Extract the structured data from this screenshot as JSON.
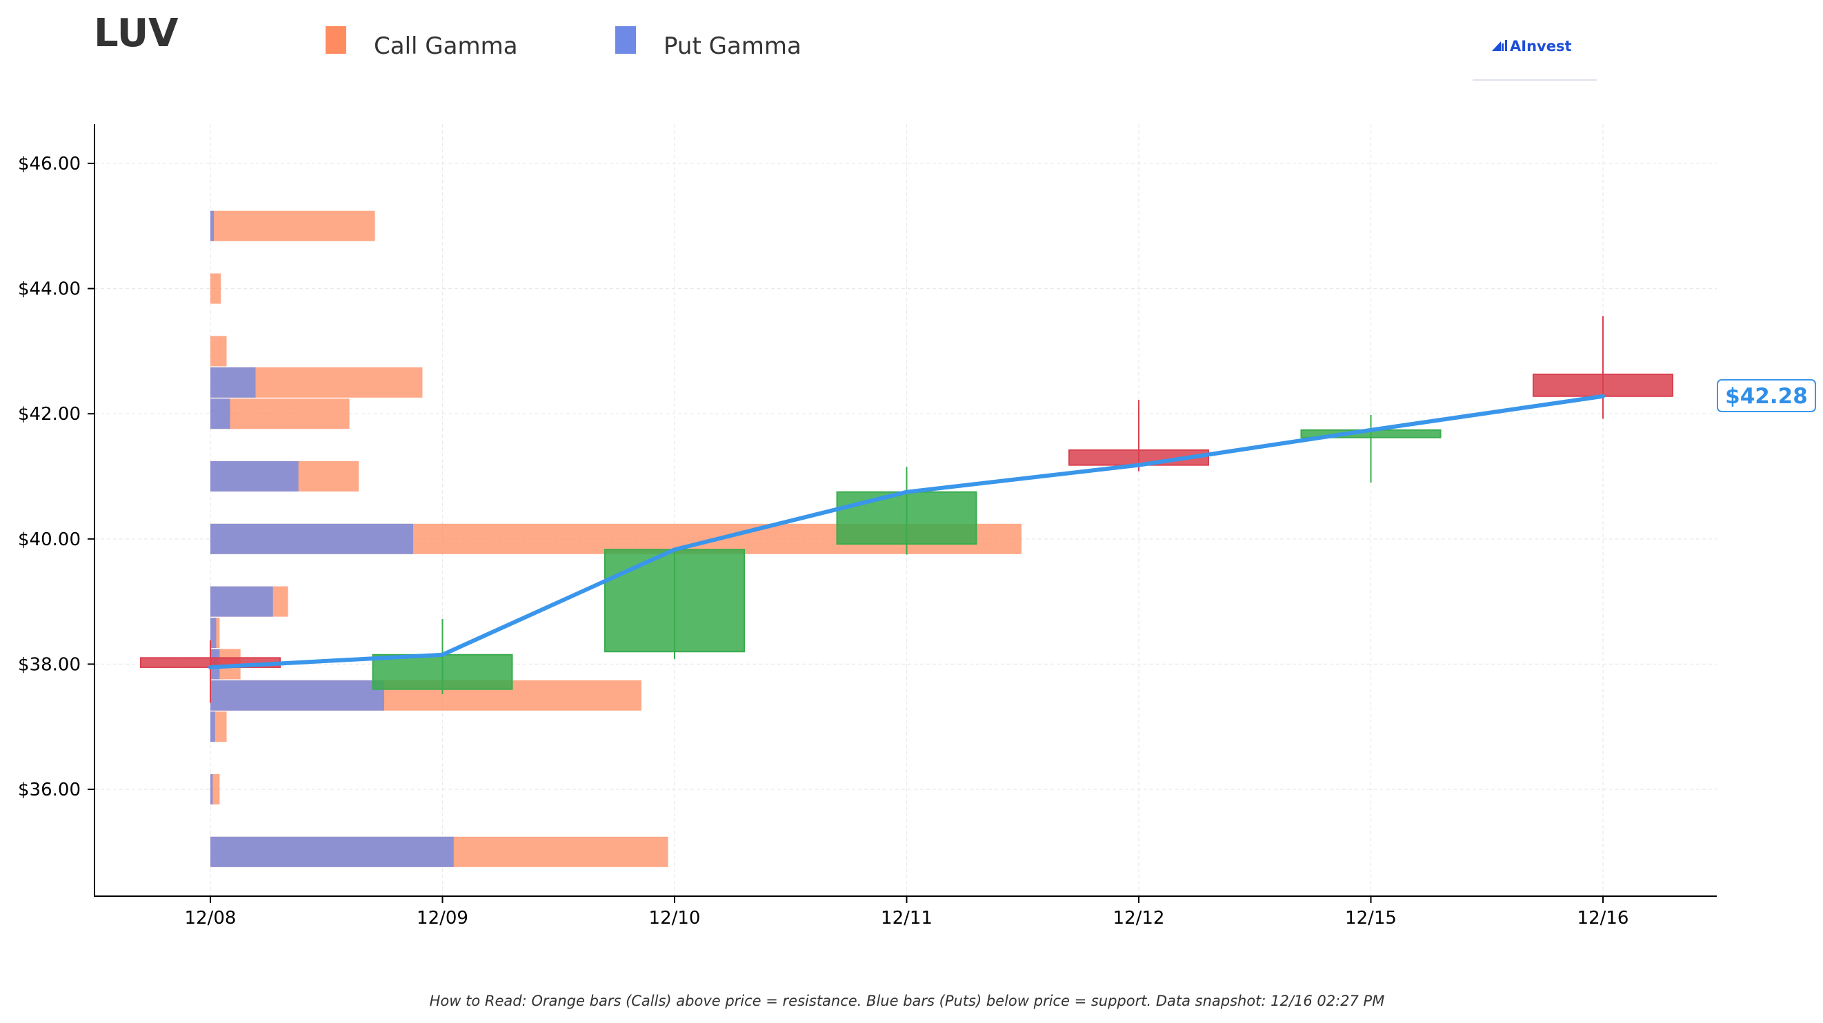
{
  "ticker": "LUV",
  "logo": {
    "text": "AInvest"
  },
  "legend": {
    "call_label": "Call Gamma",
    "put_label": "Put Gamma"
  },
  "colors": {
    "call": "#fe8c60",
    "put": "#6e8ae6",
    "up_candle": "#3aab4e",
    "down_candle": "#d9414f",
    "price_line": "#3a96ea"
  },
  "last_price_label": "$42.28",
  "footnote": "How to Read: Orange bars (Calls) above price = resistance. Blue bars (Puts) below price = support. Data snapshot: 12/16 02:27 PM",
  "chart_data": {
    "type": "candlestick",
    "x_categories": [
      "12/08",
      "12/09",
      "12/10",
      "12/11",
      "12/12",
      "12/15",
      "12/16"
    ],
    "y_ticks": [
      36,
      38,
      40,
      42,
      44,
      46
    ],
    "y_tick_labels": [
      "$36.00",
      "$38.00",
      "$40.00",
      "$42.00",
      "$44.00",
      "$46.00"
    ],
    "ylim": [
      34.35,
      46.65
    ],
    "grid": true,
    "candles": [
      {
        "date": "12/08",
        "open": 38.1,
        "close": 37.95,
        "high": 38.38,
        "low": 37.38
      },
      {
        "date": "12/09",
        "open": 37.6,
        "close": 38.15,
        "high": 38.72,
        "low": 37.52
      },
      {
        "date": "12/10",
        "open": 38.2,
        "close": 39.83,
        "high": 39.83,
        "low": 38.08
      },
      {
        "date": "12/11",
        "open": 39.92,
        "close": 40.75,
        "high": 41.15,
        "low": 39.75
      },
      {
        "date": "12/12",
        "open": 41.42,
        "close": 41.18,
        "high": 42.22,
        "low": 41.08
      },
      {
        "date": "12/15",
        "open": 41.62,
        "close": 41.74,
        "high": 41.98,
        "low": 40.9
      },
      {
        "date": "12/16",
        "open": 42.63,
        "close": 42.28,
        "high": 43.56,
        "low": 41.92
      }
    ],
    "price_line": [
      37.95,
      38.15,
      39.83,
      40.75,
      41.18,
      41.74,
      42.28
    ],
    "gamma_bars": [
      {
        "strike": 35.0,
        "call": 3.95,
        "put": 2.1
      },
      {
        "strike": 36.0,
        "call": 0.08,
        "put": 0.02
      },
      {
        "strike": 37.0,
        "call": 0.14,
        "put": 0.04
      },
      {
        "strike": 37.5,
        "call": 3.72,
        "put": 1.5
      },
      {
        "strike": 38.0,
        "call": 0.26,
        "put": 0.08
      },
      {
        "strike": 38.5,
        "call": 0.08,
        "put": 0.05
      },
      {
        "strike": 39.0,
        "call": 0.67,
        "put": 0.54
      },
      {
        "strike": 40.0,
        "call": 7.0,
        "put": 1.75
      },
      {
        "strike": 41.0,
        "call": 1.28,
        "put": 0.76
      },
      {
        "strike": 42.0,
        "call": 1.2,
        "put": 0.17
      },
      {
        "strike": 42.5,
        "call": 1.83,
        "put": 0.39
      },
      {
        "strike": 43.0,
        "call": 0.14,
        "put": 0.0
      },
      {
        "strike": 44.0,
        "call": 0.09,
        "put": 0.0
      },
      {
        "strike": 45.0,
        "call": 1.42,
        "put": 0.03
      }
    ]
  }
}
